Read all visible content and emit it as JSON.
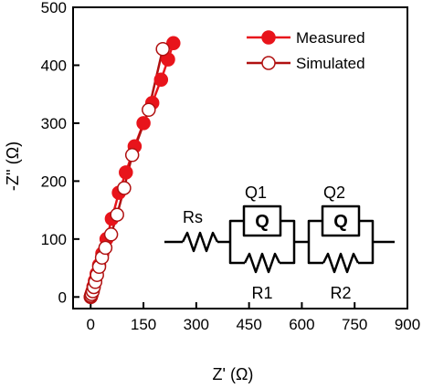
{
  "chart_data": {
    "type": "scatter",
    "xlabel": "Z' (Ω)",
    "ylabel": "-Z'' (Ω)",
    "xlim": [
      -50,
      900
    ],
    "ylim": [
      -20,
      500
    ],
    "x_ticks": [
      "0",
      "150",
      "300",
      "450",
      "600",
      "750",
      "900"
    ],
    "y_ticks": [
      "0",
      "100",
      "200",
      "300",
      "400",
      "500"
    ],
    "grid": false,
    "legend_position": "top-right",
    "series": [
      {
        "name": "Measured",
        "color": "#e8141b",
        "marker": "filled-circle",
        "points": [
          {
            "x": 0,
            "y": 0
          },
          {
            "x": 1,
            "y": 1
          },
          {
            "x": 2,
            "y": 3
          },
          {
            "x": 3,
            "y": 6
          },
          {
            "x": 5,
            "y": 10
          },
          {
            "x": 8,
            "y": 18
          },
          {
            "x": 12,
            "y": 28
          },
          {
            "x": 17,
            "y": 40
          },
          {
            "x": 24,
            "y": 55
          },
          {
            "x": 33,
            "y": 75
          },
          {
            "x": 45,
            "y": 100
          },
          {
            "x": 60,
            "y": 135
          },
          {
            "x": 80,
            "y": 180
          },
          {
            "x": 100,
            "y": 215
          },
          {
            "x": 125,
            "y": 260
          },
          {
            "x": 150,
            "y": 300
          },
          {
            "x": 175,
            "y": 335
          },
          {
            "x": 200,
            "y": 375
          },
          {
            "x": 220,
            "y": 410
          },
          {
            "x": 235,
            "y": 438
          }
        ]
      },
      {
        "name": "Simulated",
        "color": "#b01010",
        "marker": "open-circle",
        "points": [
          {
            "x": 0,
            "y": 0
          },
          {
            "x": 1,
            "y": 2
          },
          {
            "x": 3,
            "y": 5
          },
          {
            "x": 6,
            "y": 10
          },
          {
            "x": 9,
            "y": 17
          },
          {
            "x": 13,
            "y": 26
          },
          {
            "x": 18,
            "y": 38
          },
          {
            "x": 24,
            "y": 52
          },
          {
            "x": 32,
            "y": 68
          },
          {
            "x": 42,
            "y": 85
          },
          {
            "x": 58,
            "y": 108
          },
          {
            "x": 75,
            "y": 142
          },
          {
            "x": 95,
            "y": 188
          },
          {
            "x": 118,
            "y": 245
          },
          {
            "x": 165,
            "y": 323
          },
          {
            "x": 205,
            "y": 428
          }
        ]
      }
    ],
    "circuit_labels": {
      "rs": "Rs",
      "q1": "Q1",
      "q2": "Q2",
      "r1": "R1",
      "r2": "R2",
      "q": "Q"
    }
  }
}
